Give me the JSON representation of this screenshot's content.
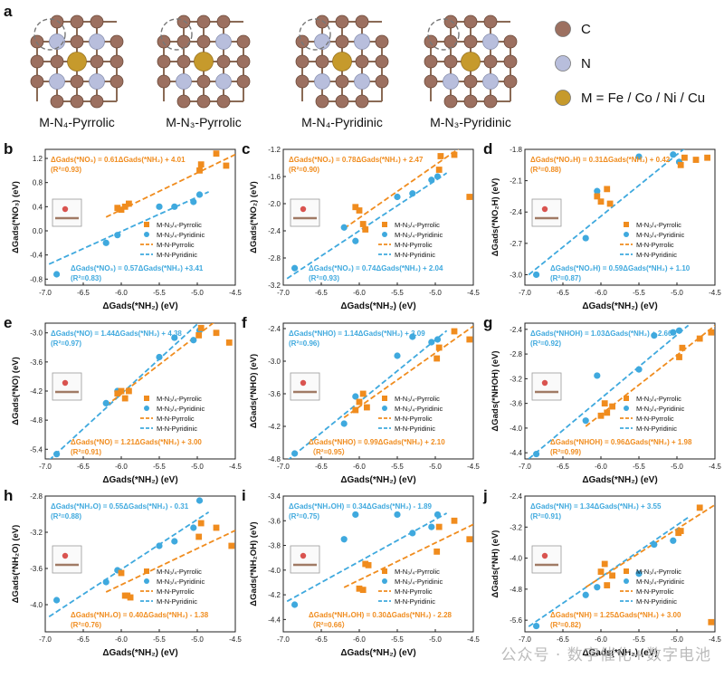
{
  "figure": {
    "panel_letters": [
      "a",
      "b",
      "c",
      "d",
      "e",
      "f",
      "g",
      "h",
      "i",
      "j"
    ],
    "structures": [
      {
        "label": "M-N₄-Pyrrolic",
        "kind": "pyrrolic",
        "n": 4
      },
      {
        "label": "M-N₃-Pyrrolic",
        "kind": "pyrrolic",
        "n": 3
      },
      {
        "label": "M-N₄-Pyridinic",
        "kind": "pyridinic",
        "n": 4
      },
      {
        "label": "M-N₃-Pyridinic",
        "kind": "pyridinic",
        "n": 3
      }
    ],
    "atom_legend": [
      {
        "label": "C",
        "color": "#9c7060"
      },
      {
        "label": "N",
        "color": "#b8bedc"
      },
      {
        "label": "M = Fe / Co / Ni / Cu",
        "color": "#c69a2c"
      }
    ],
    "series_legend": [
      "M-N₃/₄-Pyrrolic",
      "M-N₃/₄-Pyridinic",
      "M-N-Pyrrolic",
      "M-N-Pyridinic"
    ],
    "colors": {
      "pyrrolic": "#f08c1e",
      "pyridinic": "#3fa9de"
    },
    "watermark": "公众号 · 数字催化+数字电池"
  },
  "chart_data": [
    {
      "type": "scatter",
      "panel": "b",
      "xlabel": "ΔGads(*NH₂) (eV)",
      "ylabel": "ΔGads(*NO₃) (eV)",
      "xlim": [
        -7.0,
        -4.5
      ],
      "xticks": [
        -7.0,
        -6.5,
        -6.0,
        -5.5,
        -5.0,
        -4.5
      ],
      "ylim": [
        -0.9,
        1.35
      ],
      "yticks": [
        -0.8,
        -0.4,
        0.0,
        0.4,
        0.8,
        1.2
      ],
      "eq_pyrrolic": "ΔGads(*NO₃) = 0.61ΔGads(*NH₂) + 4.01",
      "r2_pyrrolic": "(R²=0.93)",
      "eq_pyridinic": "ΔGads(*NO₃) = 0.57ΔGads(*NH₂) +3.41",
      "r2_pyridinic": "(R²=0.83)",
      "fit_pyrrolic": [
        0.61,
        4.01
      ],
      "fit_pyridinic": [
        0.57,
        3.41
      ],
      "pyrrolic": [
        [
          -6.05,
          0.38
        ],
        [
          -5.95,
          0.4
        ],
        [
          -6.0,
          0.35
        ],
        [
          -5.9,
          0.45
        ],
        [
          -4.97,
          1.0
        ],
        [
          -4.95,
          1.1
        ],
        [
          -4.75,
          1.28
        ],
        [
          -4.62,
          1.08
        ]
      ],
      "pyridinic": [
        [
          -6.85,
          -0.72
        ],
        [
          -6.2,
          -0.2
        ],
        [
          -6.05,
          -0.07
        ],
        [
          -5.5,
          0.4
        ],
        [
          -5.3,
          0.4
        ],
        [
          -5.05,
          0.48
        ],
        [
          -4.97,
          0.6
        ]
      ]
    },
    {
      "type": "scatter",
      "panel": "c",
      "xlabel": "ΔGads(*NH₂) (eV)",
      "ylabel": "ΔGads(*NO₂) (eV)",
      "xlim": [
        -7.0,
        -4.5
      ],
      "xticks": [
        -7.0,
        -6.5,
        -6.0,
        -5.5,
        -5.0,
        -4.5
      ],
      "ylim": [
        -3.2,
        -1.2
      ],
      "yticks": [
        -3.2,
        -2.8,
        -2.4,
        -2.0,
        -1.6,
        -1.2
      ],
      "eq_pyrrolic": "ΔGads(*NO₂) = 0.78ΔGads(*NH₂) + 2.47",
      "r2_pyrrolic": "(R²=0.90)",
      "eq_pyridinic": "ΔGads(*NO₂) = 0.74ΔGads(*NH₂) + 2.04",
      "r2_pyridinic": "(R²=0.93)",
      "fit_pyrrolic": [
        0.78,
        2.47
      ],
      "fit_pyridinic": [
        0.74,
        2.04
      ],
      "pyrrolic": [
        [
          -6.05,
          -2.05
        ],
        [
          -6.0,
          -2.1
        ],
        [
          -5.95,
          -2.3
        ],
        [
          -5.92,
          -2.38
        ],
        [
          -4.95,
          -1.5
        ],
        [
          -4.93,
          -1.3
        ],
        [
          -4.75,
          -1.28
        ],
        [
          -4.55,
          -1.9
        ]
      ],
      "pyridinic": [
        [
          -6.85,
          -2.95
        ],
        [
          -6.2,
          -2.35
        ],
        [
          -6.05,
          -2.55
        ],
        [
          -5.5,
          -1.9
        ],
        [
          -5.3,
          -1.85
        ],
        [
          -5.05,
          -1.65
        ],
        [
          -4.97,
          -1.6
        ]
      ]
    },
    {
      "type": "scatter",
      "panel": "d",
      "xlabel": "ΔGads(*NH₂) (eV)",
      "ylabel": "ΔGads(*NO₂H) (eV)",
      "xlim": [
        -7.0,
        -4.5
      ],
      "xticks": [
        -7.0,
        -6.5,
        -6.0,
        -5.5,
        -5.0,
        -4.5
      ],
      "ylim": [
        -3.1,
        -1.8
      ],
      "yticks": [
        -3.0,
        -2.7,
        -2.4,
        -2.1,
        -1.8
      ],
      "eq_pyrrolic": "ΔGads(*NO₂H) = 0.31ΔGads(*NH₂) + 0.42",
      "r2_pyrrolic": "(R²=0.88)",
      "eq_pyridinic": "ΔGads(*NO₂H) = 0.59ΔGads(*NH₂) + 1.10",
      "r2_pyridinic": "(R²=0.87)",
      "fit_pyrrolic": [
        0.31,
        0.42
      ],
      "fit_pyridinic": [
        0.59,
        1.1
      ],
      "pyrrolic": [
        [
          -6.05,
          -2.25
        ],
        [
          -6.0,
          -2.3
        ],
        [
          -5.92,
          -2.18
        ],
        [
          -5.88,
          -2.32
        ],
        [
          -4.95,
          -1.95
        ],
        [
          -4.9,
          -1.88
        ],
        [
          -4.75,
          -1.9
        ],
        [
          -4.6,
          -1.88
        ]
      ],
      "pyridinic": [
        [
          -6.85,
          -3.0
        ],
        [
          -6.2,
          -2.65
        ],
        [
          -6.05,
          -2.2
        ],
        [
          -5.5,
          -1.87
        ],
        [
          -5.05,
          -1.85
        ],
        [
          -4.97,
          -1.92
        ]
      ]
    },
    {
      "type": "scatter",
      "panel": "e",
      "xlabel": "ΔGads(*NH₂) (eV)",
      "ylabel": "ΔGads(*NO) (eV)",
      "xlim": [
        -7.0,
        -4.5
      ],
      "xticks": [
        -7.0,
        -6.5,
        -6.0,
        -5.5,
        -5.0,
        -4.5
      ],
      "ylim": [
        -5.6,
        -2.8
      ],
      "yticks": [
        -5.4,
        -4.8,
        -4.2,
        -3.6,
        -3.0
      ],
      "eq_pyrrolic": "ΔGads(*NO) = 1.21ΔGads(*NH₂) + 3.00",
      "r2_pyrrolic": "(R²=0.91)",
      "eq_pyridinic": "ΔGads(*NO) = 1.44ΔGads(*NH₂) + 4.38",
      "r2_pyridinic": "(R²=0.97)",
      "fit_pyrrolic": [
        1.21,
        3.0
      ],
      "fit_pyridinic": [
        1.44,
        4.38
      ],
      "pyrrolic": [
        [
          -6.05,
          -4.25
        ],
        [
          -6.0,
          -4.2
        ],
        [
          -5.95,
          -4.35
        ],
        [
          -5.9,
          -4.2
        ],
        [
          -4.98,
          -3.05
        ],
        [
          -4.95,
          -2.9
        ],
        [
          -4.75,
          -3.0
        ],
        [
          -4.58,
          -3.2
        ]
      ],
      "pyridinic": [
        [
          -6.85,
          -5.5
        ],
        [
          -6.2,
          -4.45
        ],
        [
          -6.05,
          -4.2
        ],
        [
          -5.5,
          -3.5
        ],
        [
          -5.3,
          -3.1
        ],
        [
          -5.05,
          -3.15
        ],
        [
          -4.97,
          -2.95
        ]
      ]
    },
    {
      "type": "scatter",
      "panel": "f",
      "xlabel": "ΔGads(*NH₂) (eV)",
      "ylabel": "ΔGads(*NHO) (eV)",
      "xlim": [
        -7.0,
        -4.5
      ],
      "xticks": [
        -7.0,
        -6.5,
        -6.0,
        -5.5,
        -5.0,
        -4.5
      ],
      "ylim": [
        -4.8,
        -2.3
      ],
      "yticks": [
        -4.8,
        -4.2,
        -3.6,
        -3.0,
        -2.4
      ],
      "eq_pyrrolic": "ΔGads(*NHO) = 0.99ΔGads(*NH₂) + 2.10",
      "r2_pyrrolic": "（R²=0.95）",
      "eq_pyridinic": "ΔGads(*NHO) = 1.14ΔGads(*NH₂) + 3.09",
      "r2_pyridinic": "(R²=0.96)",
      "fit_pyrrolic": [
        0.99,
        2.1
      ],
      "fit_pyridinic": [
        1.14,
        3.09
      ],
      "pyrrolic": [
        [
          -6.05,
          -3.9
        ],
        [
          -6.0,
          -3.75
        ],
        [
          -5.95,
          -3.6
        ],
        [
          -5.9,
          -3.85
        ],
        [
          -4.98,
          -2.95
        ],
        [
          -4.95,
          -2.75
        ],
        [
          -4.75,
          -2.45
        ],
        [
          -4.55,
          -2.6
        ]
      ],
      "pyridinic": [
        [
          -6.85,
          -4.7
        ],
        [
          -6.2,
          -4.15
        ],
        [
          -6.05,
          -3.65
        ],
        [
          -5.5,
          -2.9
        ],
        [
          -5.3,
          -2.55
        ],
        [
          -5.05,
          -2.65
        ],
        [
          -4.97,
          -2.6
        ]
      ]
    },
    {
      "type": "scatter",
      "panel": "g",
      "xlabel": "ΔGads(*NH₂) (eV)",
      "ylabel": "ΔGads(*NHOH) (eV)",
      "xlim": [
        -7.0,
        -4.5
      ],
      "xticks": [
        -7.0,
        -6.5,
        -6.0,
        -5.5,
        -5.0,
        -4.5
      ],
      "ylim": [
        -4.5,
        -2.3
      ],
      "yticks": [
        -4.4,
        -4.0,
        -3.6,
        -3.2,
        -2.8,
        -2.4
      ],
      "eq_pyrrolic": "ΔGads(*NHOH) = 0.96ΔGads(*NH₂) + 1.98",
      "r2_pyrrolic": "(R²=0.99)",
      "eq_pyridinic": "ΔGads(*NHOH) = 1.03ΔGads(*NH₂) + 2.66",
      "r2_pyridinic": "(R²=0.92)",
      "fit_pyrrolic": [
        0.96,
        1.98
      ],
      "fit_pyridinic": [
        1.03,
        2.66
      ],
      "pyrrolic": [
        [
          -6.0,
          -3.8
        ],
        [
          -5.95,
          -3.6
        ],
        [
          -5.92,
          -3.75
        ],
        [
          -5.85,
          -3.65
        ],
        [
          -4.97,
          -2.85
        ],
        [
          -4.93,
          -2.7
        ],
        [
          -4.7,
          -2.55
        ],
        [
          -4.55,
          -2.45
        ]
      ],
      "pyridinic": [
        [
          -6.85,
          -4.42
        ],
        [
          -6.2,
          -3.88
        ],
        [
          -6.05,
          -3.15
        ],
        [
          -5.5,
          -3.05
        ],
        [
          -5.3,
          -2.5
        ],
        [
          -5.05,
          -2.45
        ],
        [
          -4.97,
          -2.42
        ]
      ]
    },
    {
      "type": "scatter",
      "panel": "h",
      "xlabel": "ΔGads(*NH₂) (eV)",
      "ylabel": "ΔGads(*NH₂O) (eV)",
      "xlim": [
        -7.0,
        -4.5
      ],
      "xticks": [
        -7.0,
        -6.5,
        -6.0,
        -5.5,
        -5.0,
        -4.5
      ],
      "ylim": [
        -4.3,
        -2.8
      ],
      "yticks": [
        -4.0,
        -3.6,
        -3.2,
        -2.8
      ],
      "eq_pyrrolic": "ΔGads(*NH₂O) = 0.40ΔGads(*NH₂) - 1.38",
      "r2_pyrrolic": "(R²=0.76)",
      "eq_pyridinic": "ΔGads(*NH₂O) = 0.55ΔGads(*NH₂) - 0.31",
      "r2_pyridinic": "(R²=0.88)",
      "fit_pyrrolic": [
        0.4,
        -1.38
      ],
      "fit_pyridinic": [
        0.55,
        -0.31
      ],
      "pyrrolic": [
        [
          -6.0,
          -3.65
        ],
        [
          -5.95,
          -3.9
        ],
        [
          -5.92,
          -3.9
        ],
        [
          -5.88,
          -3.92
        ],
        [
          -4.98,
          -3.25
        ],
        [
          -4.95,
          -3.1
        ],
        [
          -4.75,
          -3.15
        ],
        [
          -4.55,
          -3.35
        ]
      ],
      "pyridinic": [
        [
          -6.85,
          -3.95
        ],
        [
          -6.2,
          -3.75
        ],
        [
          -6.05,
          -3.62
        ],
        [
          -5.5,
          -3.35
        ],
        [
          -5.3,
          -3.3
        ],
        [
          -5.05,
          -3.15
        ],
        [
          -4.97,
          -2.85
        ]
      ]
    },
    {
      "type": "scatter",
      "panel": "i",
      "xlabel": "ΔGads(*NH₂) (eV)",
      "ylabel": "ΔGads(*NH₂OH) (eV)",
      "xlim": [
        -7.0,
        -4.5
      ],
      "xticks": [
        -7.0,
        -6.5,
        -6.0,
        -5.5,
        -5.0,
        -4.5
      ],
      "ylim": [
        -4.5,
        -3.4
      ],
      "yticks": [
        -4.4,
        -4.2,
        -4.0,
        -3.8,
        -3.6,
        -3.4
      ],
      "eq_pyrrolic": "ΔGads(*NH₂OH) = 0.30ΔGads(*NH₂) - 2.28",
      "r2_pyrrolic": "（R²=0.66）",
      "eq_pyridinic": "ΔGads(*NH₂OH) = 0.34ΔGads(*NH₂) - 1.89",
      "r2_pyridinic": "(R²=0.75)",
      "fit_pyrrolic": [
        0.3,
        -2.28
      ],
      "fit_pyridinic": [
        0.34,
        -1.89
      ],
      "pyrrolic": [
        [
          -6.0,
          -4.15
        ],
        [
          -5.95,
          -4.16
        ],
        [
          -5.92,
          -3.95
        ],
        [
          -5.88,
          -3.96
        ],
        [
          -4.98,
          -3.85
        ],
        [
          -4.95,
          -3.65
        ],
        [
          -4.75,
          -3.6
        ],
        [
          -4.55,
          -3.75
        ]
      ],
      "pyridinic": [
        [
          -6.85,
          -4.28
        ],
        [
          -6.2,
          -3.75
        ],
        [
          -6.05,
          -3.55
        ],
        [
          -5.5,
          -3.55
        ],
        [
          -5.3,
          -3.7
        ],
        [
          -5.05,
          -3.65
        ],
        [
          -4.97,
          -3.55
        ]
      ]
    },
    {
      "type": "scatter",
      "panel": "j",
      "xlabel": "ΔGads(*NH₂) (eV)",
      "ylabel": "ΔGads(*NH) (eV)",
      "xlim": [
        -7.0,
        -4.5
      ],
      "xticks": [
        -7.0,
        -6.5,
        -6.0,
        -5.5,
        -5.0,
        -4.5
      ],
      "ylim": [
        -5.9,
        -2.4
      ],
      "yticks": [
        -5.6,
        -4.8,
        -4.0,
        -3.2,
        -2.4
      ],
      "eq_pyrrolic": "ΔGads(*NH) = 1.25ΔGads(*NH₂) + 3.00",
      "r2_pyrrolic": "(R²=0.82)",
      "eq_pyridinic": "ΔGads(*NH) = 1.34ΔGads(*NH₂) + 3.55",
      "r2_pyridinic": "(R²=0.91)",
      "fit_pyrrolic": [
        1.25,
        3.0
      ],
      "fit_pyridinic": [
        1.34,
        3.55
      ],
      "pyrrolic": [
        [
          -6.0,
          -4.35
        ],
        [
          -5.95,
          -4.15
        ],
        [
          -5.92,
          -4.7
        ],
        [
          -5.85,
          -4.45
        ],
        [
          -4.98,
          -3.35
        ],
        [
          -4.95,
          -3.3
        ],
        [
          -4.7,
          -2.7
        ],
        [
          -4.55,
          -5.65
        ]
      ],
      "pyridinic": [
        [
          -6.85,
          -5.75
        ],
        [
          -6.2,
          -4.95
        ],
        [
          -6.05,
          -4.75
        ],
        [
          -5.5,
          -4.4
        ],
        [
          -5.3,
          -3.65
        ],
        [
          -5.05,
          -3.55
        ],
        [
          -4.97,
          -3.3
        ]
      ]
    }
  ]
}
